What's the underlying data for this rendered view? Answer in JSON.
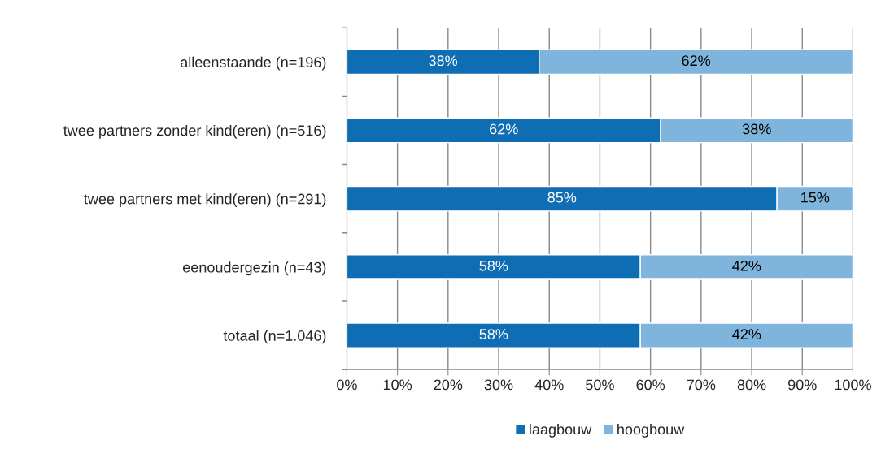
{
  "chart_data": {
    "type": "bar",
    "orientation": "horizontal",
    "stacked": true,
    "categories": [
      "alleenstaande (n=196)",
      "twee partners zonder kind(eren) (n=516)",
      "twee partners met kind(eren) (n=291)",
      "eenoudergezin (n=43)",
      "totaal (n=1.046)"
    ],
    "series": [
      {
        "name": "laagbouw",
        "color": "#0f6db3",
        "values": [
          38,
          62,
          85,
          58,
          58
        ],
        "value_labels": [
          "38%",
          "62%",
          "85%",
          "58%",
          "58%"
        ]
      },
      {
        "name": "hoogbouw",
        "color": "#7fb5dd",
        "values": [
          62,
          38,
          15,
          42,
          42
        ],
        "value_labels": [
          "62%",
          "38%",
          "15%",
          "42%",
          "42%"
        ]
      }
    ],
    "xlim": [
      0,
      100
    ],
    "xticks": [
      {
        "value": 0,
        "label": "0%"
      },
      {
        "value": 10,
        "label": "10%"
      },
      {
        "value": 20,
        "label": "20%"
      },
      {
        "value": 30,
        "label": "30%"
      },
      {
        "value": 40,
        "label": "40%"
      },
      {
        "value": 50,
        "label": "50%"
      },
      {
        "value": 60,
        "label": "60%"
      },
      {
        "value": 70,
        "label": "70%"
      },
      {
        "value": 80,
        "label": "80%"
      },
      {
        "value": 90,
        "label": "90%"
      },
      {
        "value": 100,
        "label": "100%"
      }
    ],
    "grid": "x",
    "legend": "bottom"
  }
}
